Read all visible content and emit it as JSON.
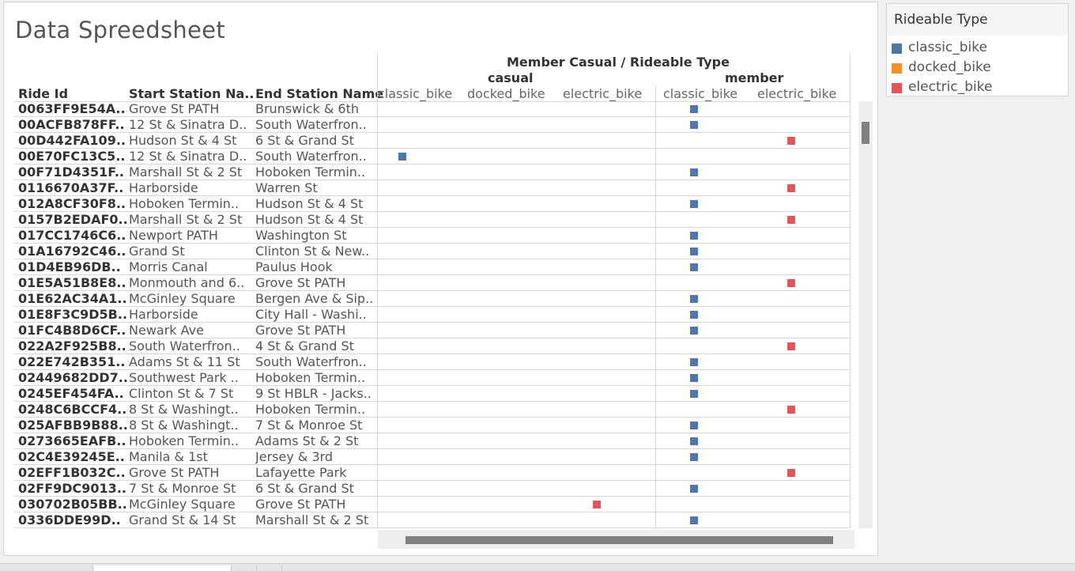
{
  "title": "Data Spreedsheet",
  "headers": {
    "ride_id": "Ride Id",
    "start_station": "Start Station Na..",
    "end_station": "End Station Name",
    "pivot_title": "Member Casual  /  Rideable Type",
    "group_casual": "casual",
    "group_member": "member",
    "casual_classic": "classic_bike",
    "casual_docked": "docked_bike",
    "casual_electric": "electric_bike",
    "member_classic": "classic_bike",
    "member_electric": "electric_bike"
  },
  "colors": {
    "classic_bike": "#4e79a7",
    "docked_bike": "#f28e2b",
    "electric_bike": "#e15759"
  },
  "rows": [
    {
      "id": "0063FF9E54A..",
      "start": "Grove St PATH",
      "end": "Brunswick & 6th",
      "mark": "member_classic"
    },
    {
      "id": "00ACFB878FF..",
      "start": "12 St & Sinatra D..",
      "end": "South Waterfron..",
      "mark": "member_classic"
    },
    {
      "id": "00D442FA109..",
      "start": "Hudson St & 4 St",
      "end": "6 St & Grand St",
      "mark": "member_electric"
    },
    {
      "id": "00E70FC13C5..",
      "start": "12 St & Sinatra D..",
      "end": "South Waterfron..",
      "mark": "casual_classic"
    },
    {
      "id": "00F71D4351F..",
      "start": "Marshall St & 2 St",
      "end": "Hoboken Termin..",
      "mark": "member_classic"
    },
    {
      "id": "0116670A37F..",
      "start": "Harborside",
      "end": "Warren St",
      "mark": "member_electric"
    },
    {
      "id": "012A8CF30F8..",
      "start": "Hoboken Termin..",
      "end": "Hudson St & 4 St",
      "mark": "member_classic"
    },
    {
      "id": "0157B2EDAF0..",
      "start": "Marshall St & 2 St",
      "end": "Hudson St & 4 St",
      "mark": "member_electric"
    },
    {
      "id": "017CC1746C6..",
      "start": "Newport PATH",
      "end": "Washington St",
      "mark": "member_classic"
    },
    {
      "id": "01A16792C46..",
      "start": "Grand St",
      "end": "Clinton St & New..",
      "mark": "member_classic"
    },
    {
      "id": "01D4EB96DB..",
      "start": "Morris Canal",
      "end": "Paulus Hook",
      "mark": "member_classic"
    },
    {
      "id": "01E5A51B8E8..",
      "start": "Monmouth and 6..",
      "end": "Grove St PATH",
      "mark": "member_electric"
    },
    {
      "id": "01E62AC34A1..",
      "start": "McGinley Square",
      "end": "Bergen Ave & Sip..",
      "mark": "member_classic"
    },
    {
      "id": "01E8F3C9D5B..",
      "start": "Harborside",
      "end": "City Hall - Washi..",
      "mark": "member_classic"
    },
    {
      "id": "01FC4B8D6CF..",
      "start": "Newark Ave",
      "end": "Grove St PATH",
      "mark": "member_classic"
    },
    {
      "id": "022A2F925B8..",
      "start": "South Waterfron..",
      "end": "4 St & Grand St",
      "mark": "member_electric"
    },
    {
      "id": "022E742B351..",
      "start": "Adams St & 11 St",
      "end": "South Waterfron..",
      "mark": "member_classic"
    },
    {
      "id": "02449682DD7..",
      "start": "Southwest Park ..",
      "end": "Hoboken Termin..",
      "mark": "member_classic"
    },
    {
      "id": "0245EF454FA..",
      "start": "Clinton St & 7 St",
      "end": "9 St HBLR - Jacks..",
      "mark": "member_classic"
    },
    {
      "id": "0248C6BCCF4..",
      "start": "8 St & Washingt..",
      "end": "Hoboken Termin..",
      "mark": "member_electric"
    },
    {
      "id": "025AFBB9B88..",
      "start": "8 St & Washingt..",
      "end": "7 St & Monroe St",
      "mark": "member_classic"
    },
    {
      "id": "0273665EAFB..",
      "start": "Hoboken Termin..",
      "end": "Adams St & 2 St",
      "mark": "member_classic"
    },
    {
      "id": "02C4E39245E..",
      "start": "Manila & 1st",
      "end": "Jersey & 3rd",
      "mark": "member_classic"
    },
    {
      "id": "02EFF1B032C..",
      "start": "Grove St PATH",
      "end": "Lafayette Park",
      "mark": "member_electric"
    },
    {
      "id": "02FF9DC9013..",
      "start": "7 St & Monroe St",
      "end": "6 St & Grand St",
      "mark": "member_classic"
    },
    {
      "id": "030702B05BB..",
      "start": "McGinley Square",
      "end": "Grove St PATH",
      "mark": "casual_electric"
    },
    {
      "id": "0336DDE99D..",
      "start": "Grand St & 14 St",
      "end": "Marshall St & 2 St",
      "mark": "member_classic"
    }
  ],
  "legend": {
    "title": "Rideable Type",
    "items": [
      {
        "label": "classic_bike",
        "color": "#4e79a7"
      },
      {
        "label": "docked_bike",
        "color": "#f28e2b"
      },
      {
        "label": "electric_bike",
        "color": "#e15759"
      }
    ]
  }
}
